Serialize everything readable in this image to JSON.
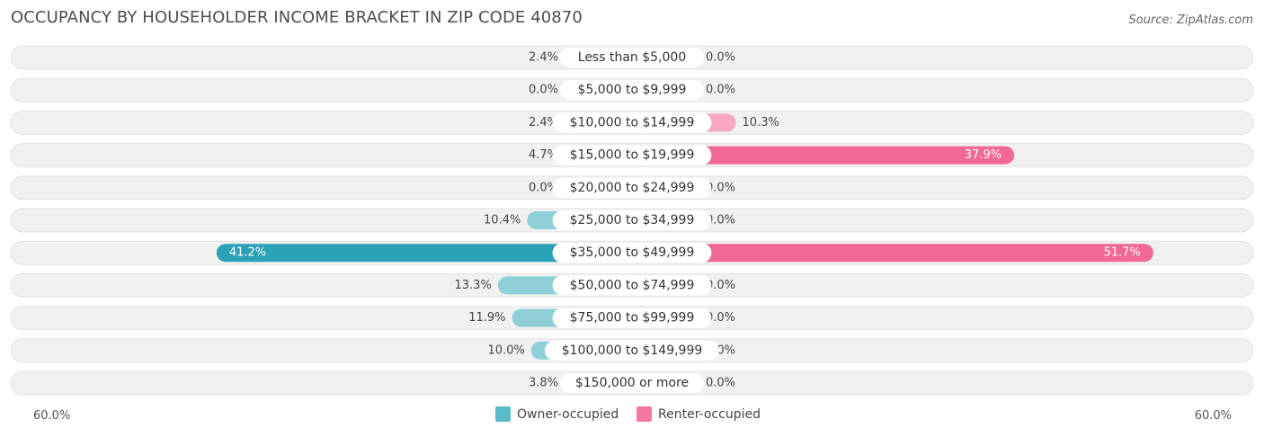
{
  "title": "OCCUPANCY BY HOUSEHOLDER INCOME BRACKET IN ZIP CODE 40870",
  "source": "Source: ZipAtlas.com",
  "axis": {
    "left_label": "60.0%",
    "right_label": "60.0%"
  },
  "legend": {
    "owner": {
      "label": "Owner-occupied",
      "color": "#5bbcc8"
    },
    "renter": {
      "label": "Renter-occupied",
      "color": "#f27aa0"
    }
  },
  "colors": {
    "owner_light": "#8fd0d8",
    "owner_strong": "#2aa3b6",
    "renter_light": "#f6a8c1",
    "renter_strong": "#f06893",
    "row_background": "#f1f1f1"
  },
  "chart_data": {
    "type": "bar",
    "orientation": "horizontal-diverging",
    "xlim": [
      -60,
      60
    ],
    "categories": [
      "Less than $5,000",
      "$5,000 to $9,999",
      "$10,000 to $14,999",
      "$15,000 to $19,999",
      "$20,000 to $24,999",
      "$25,000 to $34,999",
      "$35,000 to $49,999",
      "$50,000 to $74,999",
      "$75,000 to $99,999",
      "$100,000 to $149,999",
      "$150,000 or more"
    ],
    "series": [
      {
        "name": "Owner-occupied",
        "values": [
          2.4,
          0.0,
          2.4,
          4.7,
          0.0,
          10.4,
          41.2,
          13.3,
          11.9,
          10.0,
          3.8
        ],
        "labels": [
          "2.4%",
          "0.0%",
          "2.4%",
          "4.7%",
          "0.0%",
          "10.4%",
          "41.2%",
          "13.3%",
          "11.9%",
          "10.0%",
          "3.8%"
        ]
      },
      {
        "name": "Renter-occupied",
        "values": [
          0.0,
          0.0,
          10.3,
          37.9,
          0.0,
          0.0,
          51.7,
          0.0,
          0.0,
          0.0,
          0.0
        ],
        "labels": [
          "0.0%",
          "0.0%",
          "10.3%",
          "37.9%",
          "0.0%",
          "0.0%",
          "51.7%",
          "0.0%",
          "0.0%",
          "0.0%",
          "0.0%"
        ]
      }
    ]
  }
}
